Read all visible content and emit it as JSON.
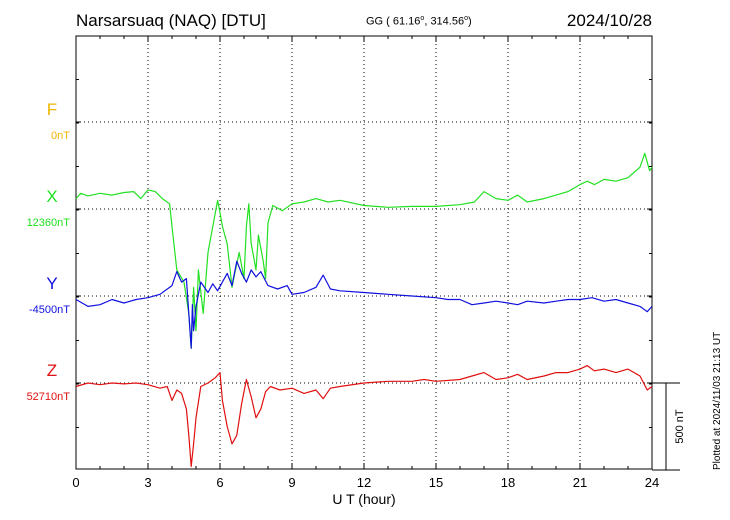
{
  "header": {
    "station": "Narsarsuaq (NAQ)  [DTU]",
    "coords_prefix": "GG ( 61.16",
    "coords_mid": ", 314.56",
    "coords_suffix": ")",
    "date": "2024/10/28"
  },
  "footer": {
    "plotted": "Plotted at 2024/11/03 21:13 UT"
  },
  "colors": {
    "F": "#f0b400",
    "X": "#22e022",
    "Y": "#1010e0",
    "Z": "#e01010",
    "axis": "#000000"
  },
  "chart_data": {
    "type": "line",
    "xlabel": "U T (hour)",
    "xlim": [
      0,
      24
    ],
    "x_ticks": [
      0,
      3,
      6,
      9,
      12,
      15,
      18,
      21,
      24
    ],
    "x_tick_labels": [
      "0",
      "3",
      "6",
      "9",
      "12",
      "15",
      "18",
      "21",
      "24"
    ],
    "scale_bar": {
      "label": "500 nT",
      "nT": 500
    },
    "components": [
      {
        "name": "F",
        "baseline": "0nT",
        "points": []
      },
      {
        "name": "X",
        "baseline": "12360nT",
        "points": [
          [
            0,
            60
          ],
          [
            0.2,
            90
          ],
          [
            0.5,
            75
          ],
          [
            1,
            90
          ],
          [
            1.5,
            80
          ],
          [
            2,
            95
          ],
          [
            2.4,
            100
          ],
          [
            2.7,
            60
          ],
          [
            3,
            110
          ],
          [
            3.3,
            100
          ],
          [
            3.6,
            60
          ],
          [
            3.9,
            30
          ],
          [
            4.0,
            -100
          ],
          [
            4.2,
            -350
          ],
          [
            4.5,
            -420
          ],
          [
            4.7,
            -600
          ],
          [
            4.8,
            -800
          ],
          [
            4.9,
            -450
          ],
          [
            5.0,
            -700
          ],
          [
            5.1,
            -350
          ],
          [
            5.3,
            -600
          ],
          [
            5.5,
            -250
          ],
          [
            5.7,
            -100
          ],
          [
            5.9,
            50
          ],
          [
            6.0,
            -20
          ],
          [
            6.1,
            -100
          ],
          [
            6.3,
            -200
          ],
          [
            6.5,
            -450
          ],
          [
            6.6,
            -380
          ],
          [
            6.8,
            -250
          ],
          [
            7.0,
            -400
          ],
          [
            7.1,
            -100
          ],
          [
            7.2,
            30
          ],
          [
            7.3,
            -200
          ],
          [
            7.5,
            -350
          ],
          [
            7.6,
            -150
          ],
          [
            7.8,
            -300
          ],
          [
            7.9,
            -400
          ],
          [
            8.0,
            -80
          ],
          [
            8.2,
            20
          ],
          [
            8.6,
            -10
          ],
          [
            9,
            30
          ],
          [
            9.5,
            40
          ],
          [
            10,
            60
          ],
          [
            10.5,
            40
          ],
          [
            11,
            50
          ],
          [
            12,
            20
          ],
          [
            13,
            10
          ],
          [
            14,
            15
          ],
          [
            15,
            15
          ],
          [
            16,
            25
          ],
          [
            16.6,
            40
          ],
          [
            17,
            100
          ],
          [
            17.5,
            60
          ],
          [
            18,
            50
          ],
          [
            18.4,
            80
          ],
          [
            18.8,
            40
          ],
          [
            19.5,
            60
          ],
          [
            20,
            80
          ],
          [
            20.5,
            100
          ],
          [
            21,
            140
          ],
          [
            21.3,
            160
          ],
          [
            21.6,
            140
          ],
          [
            22,
            170
          ],
          [
            22.5,
            160
          ],
          [
            23,
            180
          ],
          [
            23.5,
            240
          ],
          [
            23.7,
            320
          ],
          [
            23.9,
            220
          ],
          [
            24,
            240
          ]
        ]
      },
      {
        "name": "Y",
        "baseline": "-4500nT",
        "points": [
          [
            0,
            -20
          ],
          [
            0.5,
            -60
          ],
          [
            1,
            -50
          ],
          [
            1.5,
            -20
          ],
          [
            2,
            -40
          ],
          [
            2.5,
            -20
          ],
          [
            3,
            -10
          ],
          [
            3.5,
            10
          ],
          [
            4,
            60
          ],
          [
            4.2,
            140
          ],
          [
            4.4,
            80
          ],
          [
            4.6,
            100
          ],
          [
            4.7,
            -100
          ],
          [
            4.8,
            -300
          ],
          [
            4.85,
            -50
          ],
          [
            4.9,
            -200
          ],
          [
            5.0,
            -60
          ],
          [
            5.2,
            80
          ],
          [
            5.5,
            20
          ],
          [
            5.7,
            70
          ],
          [
            5.9,
            30
          ],
          [
            6.1,
            80
          ],
          [
            6.3,
            130
          ],
          [
            6.5,
            60
          ],
          [
            6.7,
            200
          ],
          [
            6.9,
            130
          ],
          [
            7.1,
            80
          ],
          [
            7.3,
            150
          ],
          [
            7.5,
            110
          ],
          [
            7.7,
            140
          ],
          [
            8,
            60
          ],
          [
            8.4,
            40
          ],
          [
            8.8,
            60
          ],
          [
            9,
            10
          ],
          [
            9.5,
            20
          ],
          [
            10,
            50
          ],
          [
            10.3,
            120
          ],
          [
            10.6,
            40
          ],
          [
            11,
            30
          ],
          [
            12,
            20
          ],
          [
            13,
            10
          ],
          [
            14,
            0
          ],
          [
            15,
            -10
          ],
          [
            15.5,
            -20
          ],
          [
            16,
            -20
          ],
          [
            16.5,
            -50
          ],
          [
            17,
            -40
          ],
          [
            17.5,
            -30
          ],
          [
            18,
            -40
          ],
          [
            18.4,
            -50
          ],
          [
            18.8,
            -30
          ],
          [
            19.5,
            -40
          ],
          [
            20,
            -30
          ],
          [
            20.5,
            -20
          ],
          [
            21,
            -20
          ],
          [
            21.5,
            -10
          ],
          [
            22,
            -30
          ],
          [
            22.5,
            -20
          ],
          [
            23,
            -40
          ],
          [
            23.5,
            -60
          ],
          [
            23.8,
            -90
          ],
          [
            24,
            -60
          ]
        ]
      },
      {
        "name": "Z",
        "baseline": "52710nT",
        "points": [
          [
            0,
            -20
          ],
          [
            0.5,
            0
          ],
          [
            1,
            -10
          ],
          [
            1.5,
            0
          ],
          [
            2,
            -5
          ],
          [
            2.5,
            0
          ],
          [
            3,
            -10
          ],
          [
            3.5,
            -30
          ],
          [
            3.8,
            -20
          ],
          [
            4.0,
            -100
          ],
          [
            4.2,
            -40
          ],
          [
            4.4,
            -60
          ],
          [
            4.6,
            -150
          ],
          [
            4.7,
            -300
          ],
          [
            4.8,
            -480
          ],
          [
            4.9,
            -350
          ],
          [
            5.0,
            -200
          ],
          [
            5.2,
            -20
          ],
          [
            5.5,
            0
          ],
          [
            5.8,
            30
          ],
          [
            6.0,
            60
          ],
          [
            6.1,
            -100
          ],
          [
            6.3,
            -250
          ],
          [
            6.5,
            -350
          ],
          [
            6.7,
            -300
          ],
          [
            6.9,
            -120
          ],
          [
            7.1,
            20
          ],
          [
            7.3,
            -80
          ],
          [
            7.5,
            -200
          ],
          [
            7.7,
            -150
          ],
          [
            7.9,
            -50
          ],
          [
            8.1,
            -20
          ],
          [
            8.5,
            -40
          ],
          [
            9,
            -30
          ],
          [
            9.5,
            -60
          ],
          [
            10,
            -40
          ],
          [
            10.3,
            -90
          ],
          [
            10.6,
            -30
          ],
          [
            11,
            -20
          ],
          [
            12,
            0
          ],
          [
            13,
            10
          ],
          [
            14,
            10
          ],
          [
            14.5,
            20
          ],
          [
            15,
            10
          ],
          [
            16,
            20
          ],
          [
            16.5,
            40
          ],
          [
            17,
            60
          ],
          [
            17.5,
            20
          ],
          [
            18,
            30
          ],
          [
            18.4,
            50
          ],
          [
            18.8,
            20
          ],
          [
            19.5,
            40
          ],
          [
            20,
            60
          ],
          [
            20.5,
            60
          ],
          [
            21,
            80
          ],
          [
            21.3,
            100
          ],
          [
            21.6,
            70
          ],
          [
            22,
            80
          ],
          [
            22.5,
            60
          ],
          [
            23,
            80
          ],
          [
            23.5,
            40
          ],
          [
            23.8,
            -40
          ],
          [
            24,
            -20
          ]
        ]
      }
    ]
  }
}
